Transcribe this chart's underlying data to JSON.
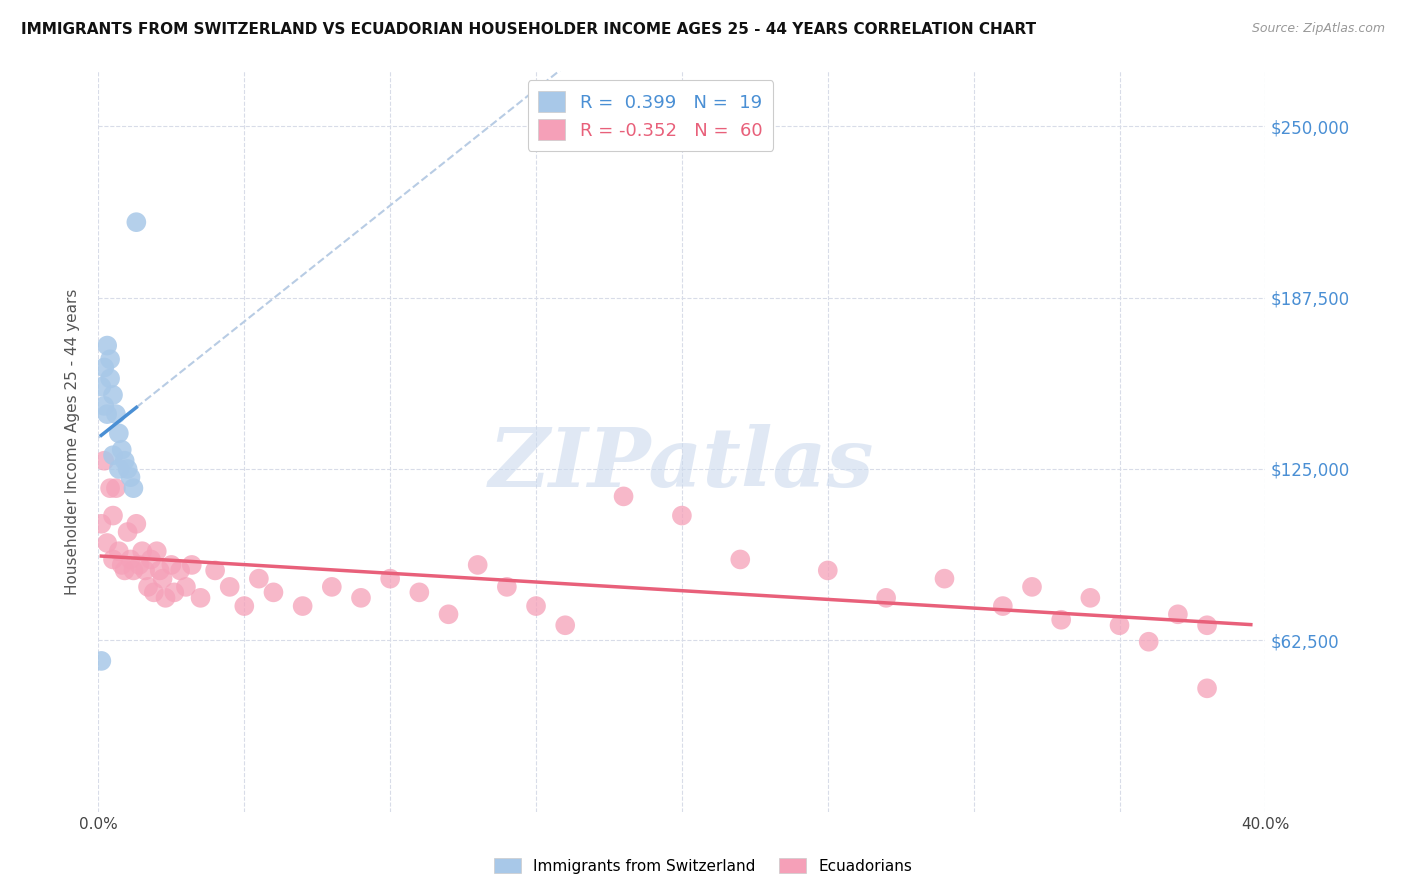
{
  "title": "IMMIGRANTS FROM SWITZERLAND VS ECUADORIAN HOUSEHOLDER INCOME AGES 25 - 44 YEARS CORRELATION CHART",
  "source": "Source: ZipAtlas.com",
  "ylabel": "Householder Income Ages 25 - 44 years",
  "xlim": [
    0.0,
    0.4
  ],
  "ylim": [
    0,
    270000
  ],
  "xticks": [
    0.0,
    0.05,
    0.1,
    0.15,
    0.2,
    0.25,
    0.3,
    0.35,
    0.4
  ],
  "xticklabels": [
    "0.0%",
    "",
    "",
    "",
    "",
    "",
    "",
    "",
    "40.0%"
  ],
  "ytick_positions": [
    62500,
    125000,
    187500,
    250000
  ],
  "ytick_labels": [
    "$62,500",
    "$125,000",
    "$187,500",
    "$250,000"
  ],
  "swiss_R": 0.399,
  "swiss_N": 19,
  "ecu_R": -0.352,
  "ecu_N": 60,
  "swiss_color": "#a8c8e8",
  "swiss_line_color": "#4a8fd4",
  "ecu_color": "#f5a0b8",
  "ecu_line_color": "#e8607a",
  "grid_color": "#d8dce8",
  "background_color": "#ffffff",
  "watermark": "ZIPatlas",
  "ref_line_color": "#b8cce4",
  "swiss_x": [
    0.001,
    0.002,
    0.003,
    0.004,
    0.005,
    0.006,
    0.007,
    0.008,
    0.009,
    0.01,
    0.011,
    0.012,
    0.013,
    0.001,
    0.003,
    0.005,
    0.007,
    0.004,
    0.002
  ],
  "swiss_y": [
    155000,
    162000,
    170000,
    158000,
    152000,
    145000,
    138000,
    132000,
    128000,
    125000,
    122000,
    118000,
    215000,
    55000,
    145000,
    130000,
    125000,
    165000,
    148000
  ],
  "ecu_x": [
    0.001,
    0.002,
    0.003,
    0.004,
    0.005,
    0.005,
    0.006,
    0.007,
    0.008,
    0.009,
    0.01,
    0.011,
    0.012,
    0.013,
    0.014,
    0.015,
    0.016,
    0.017,
    0.018,
    0.019,
    0.02,
    0.021,
    0.022,
    0.023,
    0.025,
    0.026,
    0.028,
    0.03,
    0.032,
    0.035,
    0.04,
    0.045,
    0.05,
    0.055,
    0.06,
    0.07,
    0.08,
    0.09,
    0.1,
    0.11,
    0.12,
    0.13,
    0.14,
    0.15,
    0.16,
    0.18,
    0.2,
    0.22,
    0.25,
    0.27,
    0.29,
    0.31,
    0.32,
    0.33,
    0.34,
    0.35,
    0.36,
    0.37,
    0.38,
    0.38
  ],
  "ecu_y": [
    105000,
    128000,
    98000,
    118000,
    108000,
    92000,
    118000,
    95000,
    90000,
    88000,
    102000,
    92000,
    88000,
    105000,
    90000,
    95000,
    88000,
    82000,
    92000,
    80000,
    95000,
    88000,
    85000,
    78000,
    90000,
    80000,
    88000,
    82000,
    90000,
    78000,
    88000,
    82000,
    75000,
    85000,
    80000,
    75000,
    82000,
    78000,
    85000,
    80000,
    72000,
    90000,
    82000,
    75000,
    68000,
    115000,
    108000,
    92000,
    88000,
    78000,
    85000,
    75000,
    82000,
    70000,
    78000,
    68000,
    62000,
    72000,
    68000,
    45000
  ]
}
